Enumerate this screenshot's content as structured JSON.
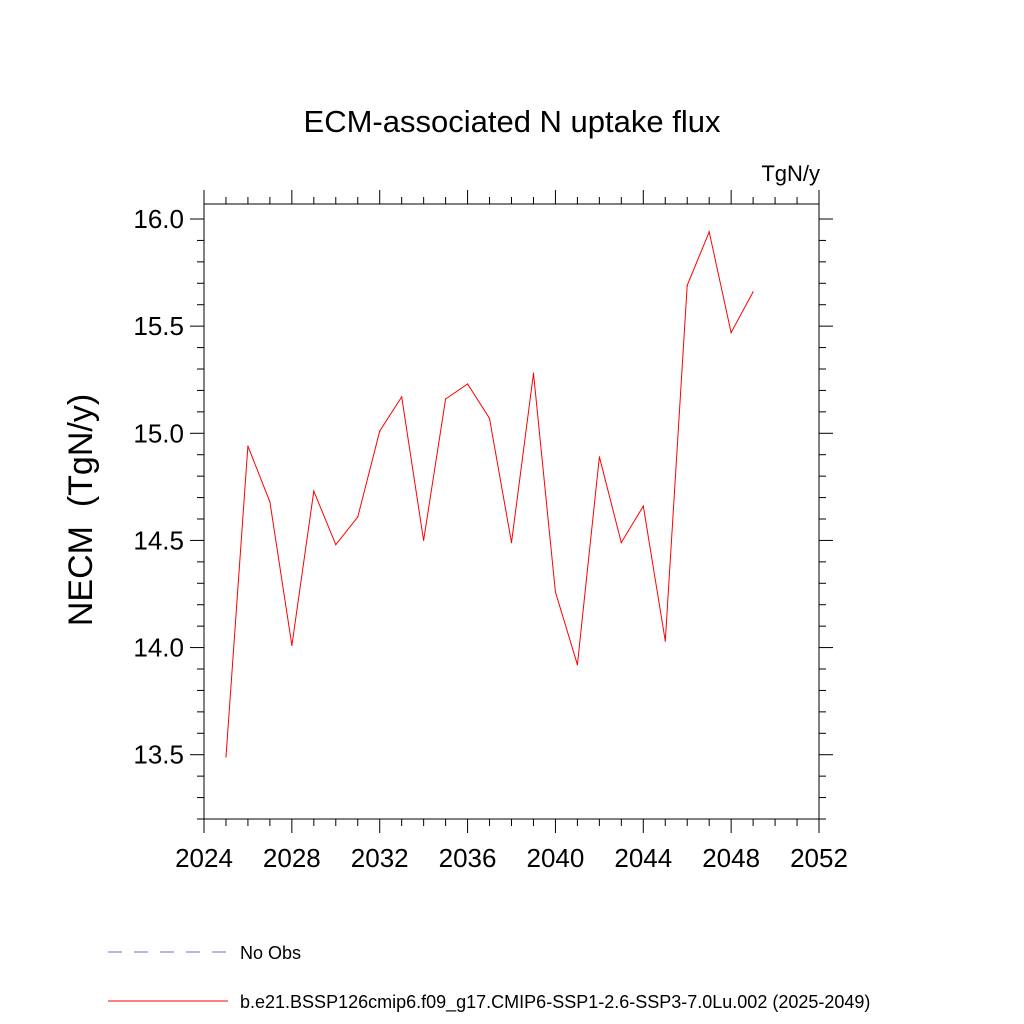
{
  "chart_data": {
    "type": "line",
    "title": "ECM-associated N uptake flux",
    "units": "TgN/y",
    "ylabel": "NECM  (TgN/y)",
    "xlabel": "",
    "xlim": [
      2024,
      2052
    ],
    "ylim": [
      13.2,
      16.07
    ],
    "x_ticks": [
      2024,
      2028,
      2032,
      2036,
      2040,
      2044,
      2048,
      2052
    ],
    "x_tick_labels": [
      "2024",
      "2028",
      "2032",
      "2036",
      "2040",
      "2044",
      "2048",
      "2052"
    ],
    "y_ticks": [
      13.5,
      14.0,
      14.5,
      15.0,
      15.5,
      16.0
    ],
    "y_tick_labels": [
      "13.5",
      "14.0",
      "14.5",
      "15.0",
      "15.5",
      "16.0"
    ],
    "grid": false,
    "legend_position": "bottom",
    "series": [
      {
        "name": "b.e21.BSSP126cmip6.f09_g17.CMIP6-SSP1-2.6-SSP3-7.0Lu.002 (2025-2049)",
        "color": "#ff0000",
        "style": "solid",
        "x": [
          2025,
          2026,
          2027,
          2028,
          2029,
          2030,
          2031,
          2032,
          2033,
          2034,
          2035,
          2036,
          2037,
          2038,
          2039,
          2040,
          2041,
          2042,
          2043,
          2044,
          2045,
          2046,
          2047,
          2048,
          2049
        ],
        "y": [
          13.49,
          14.94,
          14.68,
          14.01,
          14.73,
          14.48,
          14.61,
          15.01,
          15.17,
          14.5,
          15.16,
          15.23,
          15.07,
          14.49,
          15.28,
          14.26,
          13.92,
          14.89,
          14.49,
          14.66,
          14.03,
          15.69,
          15.94,
          15.47,
          15.66
        ]
      }
    ],
    "legend": [
      {
        "label": "No Obs",
        "color": "#7b68c8",
        "style": "dashed"
      },
      {
        "label": "b.e21.BSSP126cmip6.f09_g17.CMIP6-SSP1-2.6-SSP3-7.0Lu.002 (2025-2049)",
        "color": "#ff0000",
        "style": "solid"
      }
    ]
  }
}
